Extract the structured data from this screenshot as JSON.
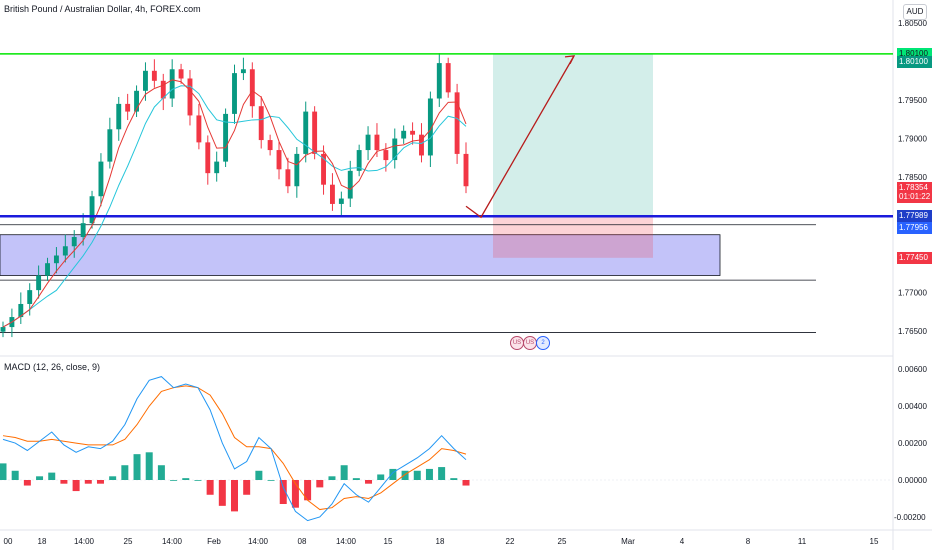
{
  "header": {
    "title": "British Pound / Australian Dollar, 4h, FOREX.com",
    "currency": "AUD",
    "macd_title": "MACD (12, 26, close, 9)"
  },
  "price_axis": {
    "ticks": [
      "1.80500",
      "1.80000",
      "1.79500",
      "1.79000",
      "1.78500",
      "1.77000",
      "1.76500"
    ],
    "badges": [
      {
        "label": "1.80100",
        "bg": "#00e676",
        "fg": "#131722",
        "value": 1.801
      },
      {
        "label": "1.80100",
        "bg": "#089981",
        "fg": "#ffffff",
        "value": 1.8
      },
      {
        "label": "1.78354",
        "bg": "#f23645",
        "fg": "#ffffff",
        "value": 1.7836
      },
      {
        "label": "01:01:22",
        "bg": "#f23645",
        "fg": "#ffffff",
        "value": 1.7824
      },
      {
        "label": "1.77989",
        "bg": "#1e3ec8",
        "fg": "#ffffff",
        "value": 1.7799
      },
      {
        "label": "1.77956",
        "bg": "#2962ff",
        "fg": "#ffffff",
        "value": 1.7784
      },
      {
        "label": "1.77450",
        "bg": "#f23645",
        "fg": "#ffffff",
        "value": 1.7745
      }
    ]
  },
  "macd_axis": {
    "ticks": [
      "0.00600",
      "0.00400",
      "0.00200",
      "0.00000",
      "-0.00200"
    ]
  },
  "time_axis": {
    "ticks": [
      "00",
      "18",
      "14:00",
      "25",
      "14:00",
      "Feb",
      "14:00",
      "08",
      "14:00",
      "15",
      "18",
      "22",
      "25",
      "Mar",
      "4",
      "8",
      "11",
      "15"
    ]
  },
  "events": [
    "US",
    "US",
    "2"
  ],
  "chart_data": [
    {
      "type": "candlestick",
      "title": "British Pound / Australian Dollar, 4h, FOREX.com",
      "ylim": [
        1.762,
        1.808
      ],
      "levels": {
        "resistance": 1.801,
        "support": 1.7799,
        "entry": 1.7799,
        "take_profit": 1.801,
        "stop_loss": 1.7745,
        "demand_zone": [
          1.7722,
          1.7775
        ],
        "lines": [
          1.7788,
          1.7716,
          1.7648
        ]
      },
      "price_path": [
        1.7655,
        1.7668,
        1.7685,
        1.7703,
        1.7722,
        1.7738,
        1.7748,
        1.776,
        1.7772,
        1.779,
        1.7825,
        1.787,
        1.7912,
        1.7945,
        1.7935,
        1.7962,
        1.7988,
        1.7975,
        1.7952,
        1.799,
        1.7978,
        1.793,
        1.7895,
        1.7855,
        1.787,
        1.7932,
        1.7985,
        1.799,
        1.7942,
        1.7898,
        1.7885,
        1.786,
        1.7838,
        1.788,
        1.7935,
        1.788,
        1.784,
        1.7815,
        1.7822,
        1.7858,
        1.7885,
        1.7905,
        1.7885,
        1.7872,
        1.79,
        1.791,
        1.7905,
        1.7878,
        1.7952,
        1.7998,
        1.796,
        1.788,
        1.7838
      ],
      "projection": {
        "from": 1.7799,
        "to": 1.801
      }
    },
    {
      "type": "bar",
      "title": "MACD (12, 26, close, 9)",
      "ylim": [
        -0.0026,
        0.0065
      ],
      "series": [
        {
          "name": "MACD",
          "values": [
            0.0022,
            0.002,
            0.0016,
            0.0021,
            0.0026,
            0.0019,
            0.0015,
            0.0018,
            0.0017,
            0.0021,
            0.003,
            0.0044,
            0.0054,
            0.0056,
            0.005,
            0.0052,
            0.005,
            0.0038,
            0.002,
            0.0006,
            0.001,
            0.0023,
            0.0017,
            -0.0004,
            -0.0017,
            -0.0022,
            -0.002,
            -0.0013,
            -0.0002,
            -0.0008,
            -0.0012,
            -0.0004,
            0.0004,
            0.0008,
            0.0012,
            0.0017,
            0.0024,
            0.0017,
            0.0011
          ]
        },
        {
          "name": "Signal",
          "values": [
            0.0024,
            0.0023,
            0.0021,
            0.0021,
            0.0022,
            0.0021,
            0.002,
            0.0019,
            0.0019,
            0.0019,
            0.0022,
            0.003,
            0.004,
            0.0048,
            0.005,
            0.0051,
            0.005,
            0.0046,
            0.0036,
            0.0023,
            0.0018,
            0.0018,
            0.0017,
            0.0009,
            -0.0002,
            -0.0011,
            -0.0016,
            -0.0015,
            -0.001,
            -0.0009,
            -0.001,
            -0.0007,
            -0.0002,
            0.0003,
            0.0007,
            0.0011,
            0.0017,
            0.0016,
            0.0014
          ]
        },
        {
          "name": "Histogram",
          "values": [
            0.0009,
            0.0005,
            -0.0003,
            0.0002,
            0.0004,
            -0.0002,
            -0.0006,
            -0.0002,
            -0.0002,
            0.0002,
            0.0008,
            0.0014,
            0.0015,
            0.0008,
            0.0,
            0.0001,
            0.0,
            -0.0008,
            -0.0014,
            -0.0017,
            -0.0008,
            0.0005,
            0.0,
            -0.0013,
            -0.0015,
            -0.0011,
            -0.0004,
            0.0002,
            0.0008,
            0.0001,
            -0.0002,
            0.0003,
            0.0006,
            0.0005,
            0.0005,
            0.0006,
            0.0007,
            0.0001,
            -0.0003
          ]
        }
      ],
      "colors": {
        "macd": "#2196f3",
        "signal": "#ff6d00",
        "hist_up": "#22ab94",
        "hist_down": "#f23645"
      }
    }
  ]
}
